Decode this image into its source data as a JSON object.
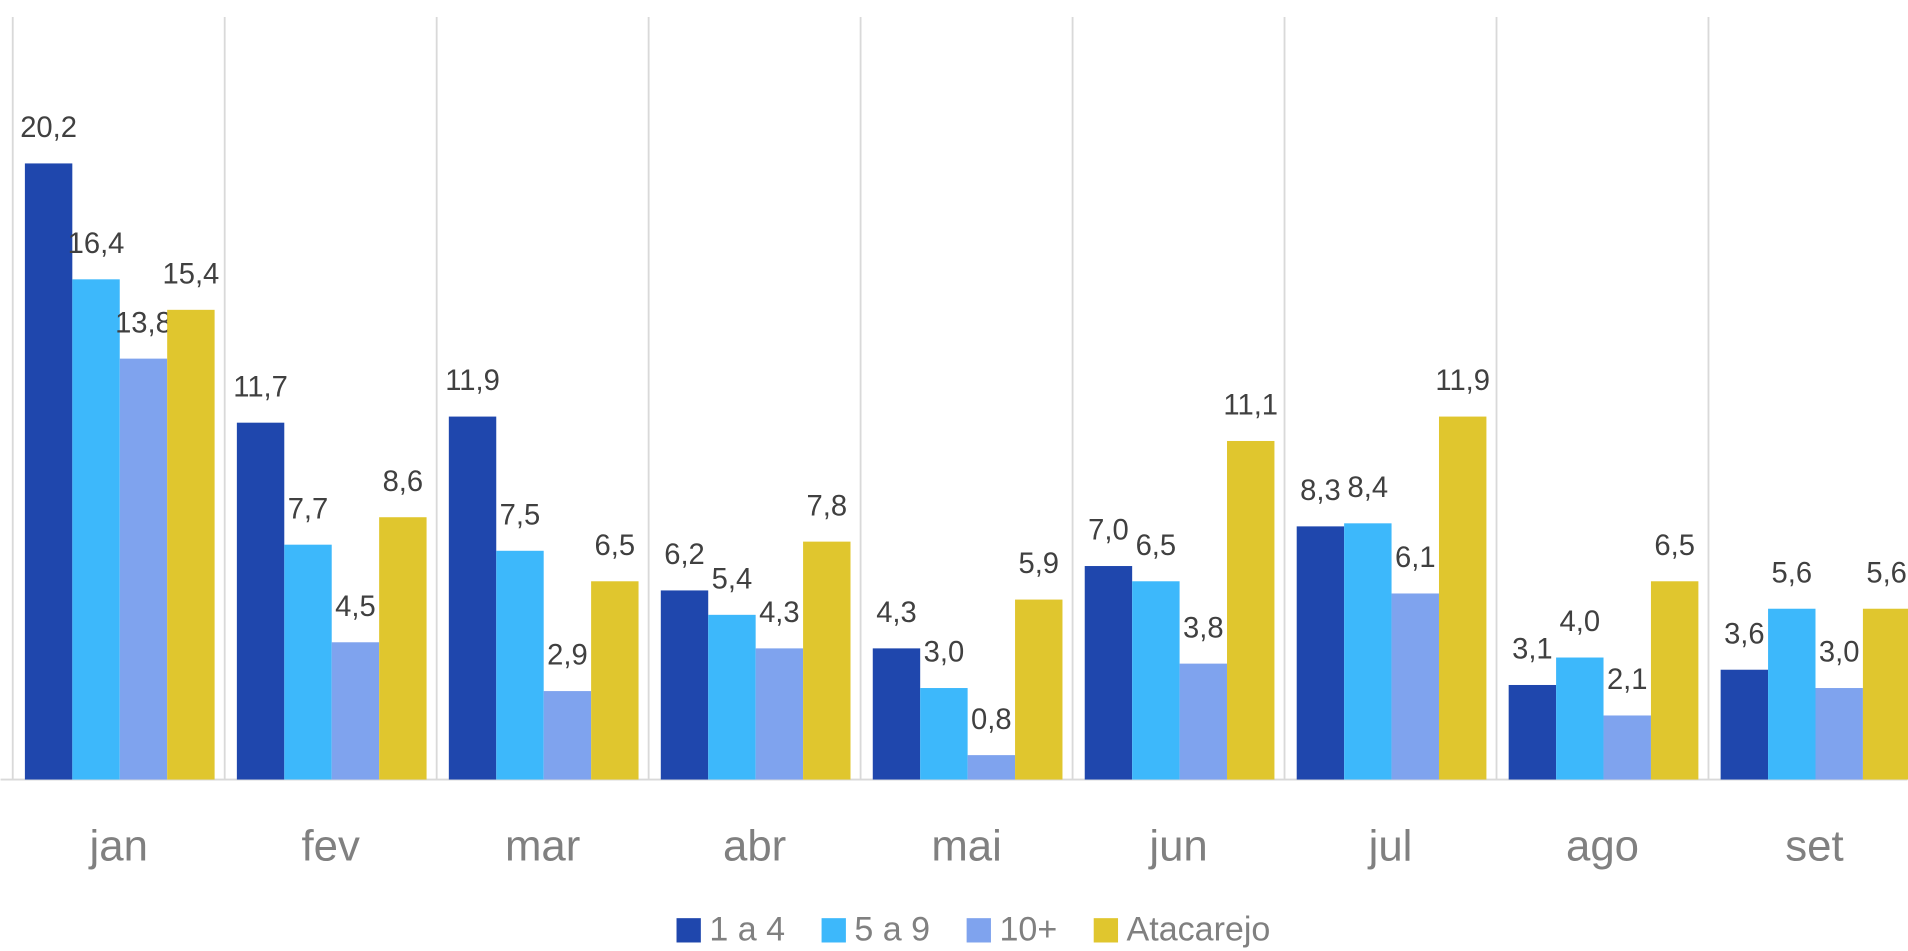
{
  "chart_data": {
    "type": "bar",
    "categories": [
      "jan",
      "fev",
      "mar",
      "abr",
      "mai",
      "jun",
      "jul",
      "ago",
      "set"
    ],
    "series": [
      {
        "name": "1 a 4",
        "color": "#1f47ad",
        "values": [
          20.2,
          11.7,
          11.9,
          6.2,
          4.3,
          7.0,
          8.3,
          3.1,
          3.6
        ],
        "value_labels": [
          "20,2",
          "11,7",
          "11,9",
          "6,2",
          "4,3",
          "7,0",
          "8,3",
          "3,1",
          "3,6"
        ]
      },
      {
        "name": "5 a 9",
        "color": "#3db8fb",
        "values": [
          16.4,
          7.7,
          7.5,
          5.4,
          3.0,
          6.5,
          8.4,
          4.0,
          5.6
        ],
        "value_labels": [
          "16,4",
          "7,7",
          "7,5",
          "5,4",
          "3,0",
          "6,5",
          "8,4",
          "4,0",
          "5,6"
        ]
      },
      {
        "name": "10+",
        "color": "#7fa3ee",
        "values": [
          13.8,
          4.5,
          2.9,
          4.3,
          0.8,
          3.8,
          6.1,
          2.1,
          3.0
        ],
        "value_labels": [
          "13,8",
          "4,5",
          "2,9",
          "4,3",
          "0,8",
          "3,8",
          "6,1",
          "2,1",
          "3,0"
        ]
      },
      {
        "name": "Atacarejo",
        "color": "#e0c62e",
        "values": [
          15.4,
          8.6,
          6.5,
          7.8,
          5.9,
          11.1,
          11.9,
          6.5,
          5.6
        ],
        "value_labels": [
          "15,4",
          "8,6",
          "6,5",
          "7,8",
          "5,9",
          "11,1",
          "11,9",
          "6,5",
          "5,6"
        ]
      }
    ],
    "ylim": [
      0,
      25
    ],
    "legend": "bottom"
  }
}
